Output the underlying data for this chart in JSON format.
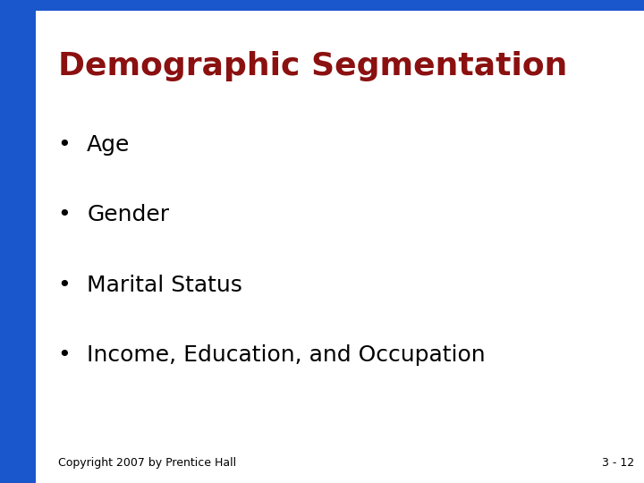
{
  "title": "Demographic Segmentation",
  "title_color": "#8B1010",
  "title_fontsize": 26,
  "title_bold": true,
  "bullet_items": [
    "Age",
    "Gender",
    "Marital Status",
    "Income, Education, and Occupation"
  ],
  "bullet_color": "#000000",
  "bullet_fontsize": 18,
  "background_color": "#FFFFFF",
  "border_color": "#1A56CC",
  "left_bar_width": 0.055,
  "top_bar_height": 0.022,
  "footer_left": "Copyright 2007 by Prentice Hall",
  "footer_right": "3 - 12",
  "footer_fontsize": 9,
  "footer_color": "#000000"
}
